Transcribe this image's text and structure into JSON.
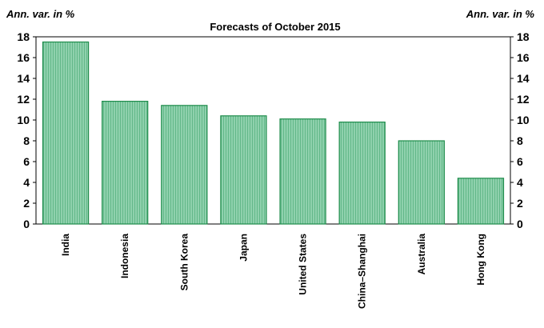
{
  "chart_data": {
    "type": "bar",
    "title": "Forecasts of October 2015",
    "ylabel_left": "Ann. var. in %",
    "ylabel_right": "Ann. var. in %",
    "categories": [
      "India",
      "Indonesia",
      "South Korea",
      "Japan",
      "United States",
      "China–Shanghai",
      "Australia",
      "Hong Kong"
    ],
    "values": [
      17.5,
      11.8,
      11.4,
      10.4,
      10.1,
      9.8,
      8.0,
      4.4
    ],
    "ylim": [
      0,
      18
    ],
    "yticks": [
      0,
      2,
      4,
      6,
      8,
      10,
      12,
      14,
      16,
      18
    ],
    "grid": false,
    "legend": "none"
  },
  "colors": {
    "bar_fill": "#8fd1ad",
    "bar_hatch": "#63b88a",
    "bar_stroke": "#1e8c4b",
    "axis": "#000000"
  }
}
